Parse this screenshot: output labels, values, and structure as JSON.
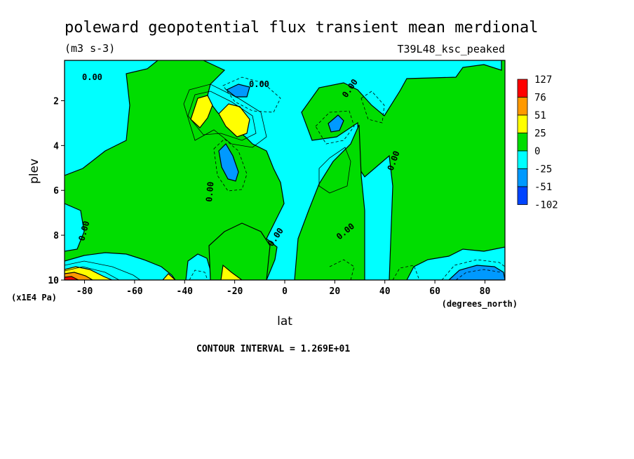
{
  "chart_data": {
    "type": "heatmap",
    "title": "poleward geopotential flux transient mean merdional",
    "units": "(m3 s-3)",
    "run_label": "T39L48_ksc_peaked",
    "xlabel": "lat",
    "x_unit": "(degrees_north)",
    "ylabel": "plev",
    "y_unit": "(x1E4 Pa)",
    "contour_interval_text": "CONTOUR INTERVAL = 1.269E+01",
    "xlim": [
      -88,
      88
    ],
    "ylim": [
      0.2,
      10
    ],
    "y_inverted": true,
    "x_ticks": [
      "-80",
      "-60",
      "-40",
      "-20",
      "0",
      "20",
      "40",
      "60",
      "80"
    ],
    "y_ticks": [
      "2",
      "4",
      "6",
      "8",
      "10"
    ],
    "colorbar": {
      "labels": [
        "127",
        "76",
        "51",
        "25",
        "0",
        "-25",
        "-51",
        "-102"
      ],
      "colors": [
        "#ff0000",
        "#ff9900",
        "#ffff00",
        "#00dd00",
        "#00ffff",
        "#0099ff",
        "#0044ff"
      ]
    },
    "zero_contour_labels": [
      "0.00",
      "0.00",
      "0.00",
      "0.00",
      "0.00",
      "0.00",
      "0.00",
      "0.00"
    ],
    "regions": [
      {
        "level": "0 to 25",
        "description": "positive flux over much of the domain"
      },
      {
        "level": "25 to 51",
        "lat": -34,
        "plev": 2.6
      },
      {
        "level": "25 to 51",
        "lat": -21,
        "plev": 2.8
      },
      {
        "level": "25 to 51",
        "lat": -85,
        "plev": 9.8
      },
      {
        "level": "76 to 127",
        "lat": -86,
        "plev": 9.95
      },
      {
        "level": "-25 to -51",
        "lat": -20,
        "plev": 4.6
      },
      {
        "level": "-25 to -51",
        "lat": -17,
        "plev": 1.5
      },
      {
        "level": "-25 to -51",
        "lat": 20,
        "plev": 3.0
      },
      {
        "level": "-51 to -102",
        "lat": 75,
        "plev": 9.9
      }
    ]
  }
}
